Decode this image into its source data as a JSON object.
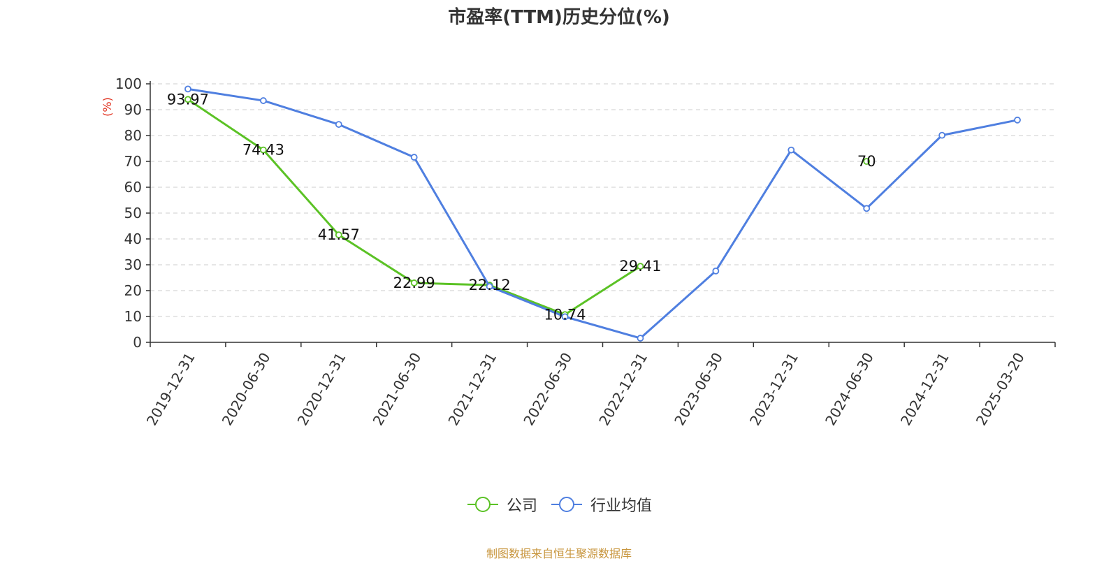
{
  "chart_data": {
    "type": "line",
    "title": "市盈率(TTM)历史分位(%)",
    "ylabel": "(%)",
    "ylim": [
      0,
      100
    ],
    "yticks": [
      0,
      10,
      20,
      30,
      40,
      50,
      60,
      70,
      80,
      90,
      100
    ],
    "grid": true,
    "legend_position": "bottom-center",
    "categories": [
      "2019-12-31",
      "2020-06-30",
      "2020-12-31",
      "2021-06-30",
      "2021-12-31",
      "2022-06-30",
      "2022-12-31",
      "2023-06-30",
      "2023-12-31",
      "2024-06-30",
      "2024-12-31",
      "2025-03-20"
    ],
    "series": [
      {
        "name": "公司",
        "color": "#5bc225",
        "values": [
          93.97,
          74.43,
          41.57,
          22.99,
          22.12,
          10.74,
          29.41,
          null,
          null,
          70,
          null,
          null
        ],
        "labels": [
          "93.97",
          "74.43",
          "41.57",
          "22.99",
          "22.12",
          "10.74",
          "29.41",
          null,
          null,
          "70",
          null,
          null
        ]
      },
      {
        "name": "行业均值",
        "color": "#4f7fe0",
        "values": [
          98,
          93.5,
          84.3,
          71.6,
          21.6,
          9.9,
          1.6,
          27.6,
          74.4,
          51.8,
          80.1,
          86
        ]
      }
    ]
  },
  "source": "制图数据来自恒生聚源数据库"
}
